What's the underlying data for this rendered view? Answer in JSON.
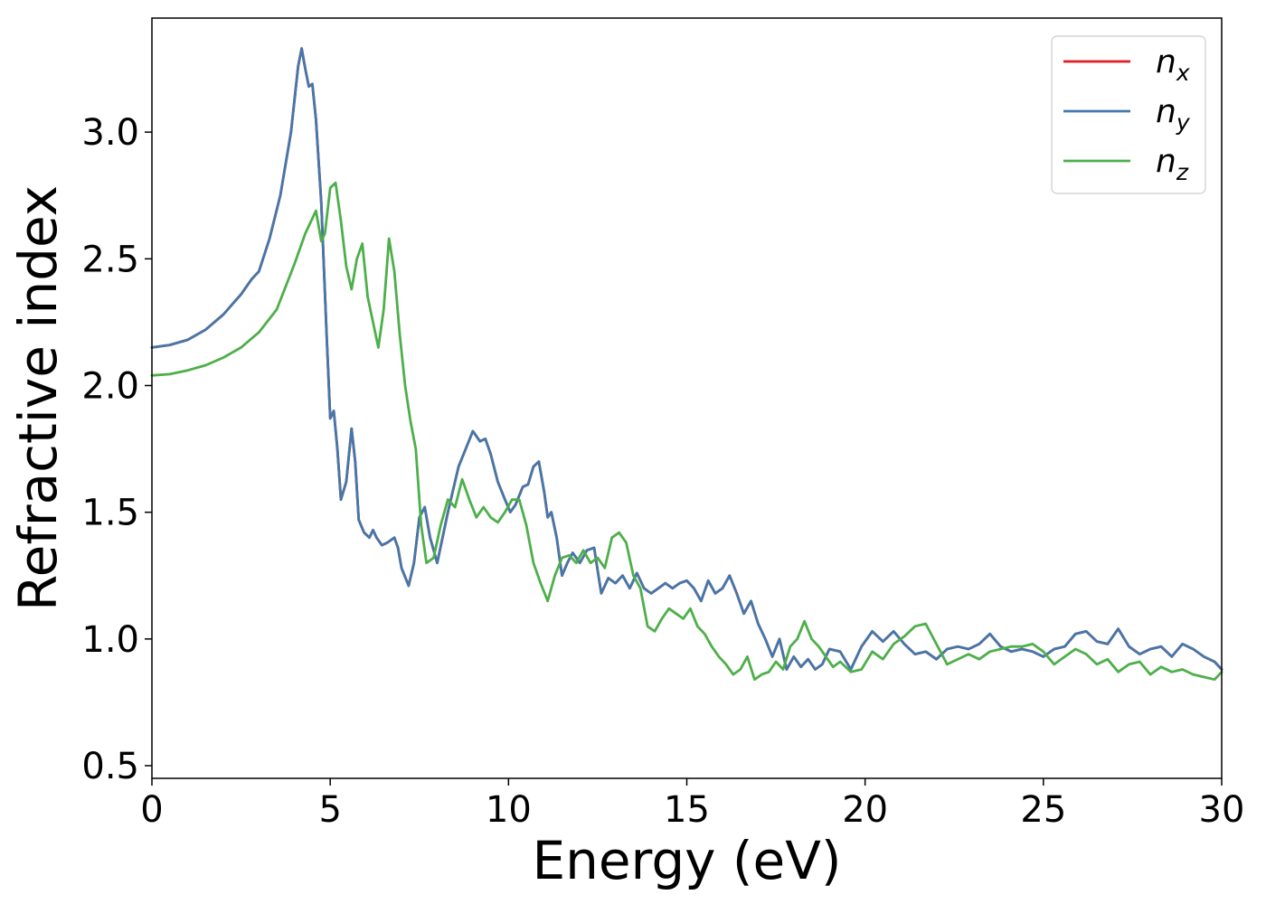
{
  "chart_data": {
    "type": "line",
    "xlabel": "Energy (eV)",
    "ylabel": "Refractive index",
    "xlim": [
      0,
      30
    ],
    "ylim": [
      0.45,
      3.45
    ],
    "xticks": [
      0,
      5,
      10,
      15,
      20,
      25,
      30
    ],
    "xtick_labels": [
      "0",
      "5",
      "10",
      "15",
      "20",
      "25",
      "30"
    ],
    "yticks": [
      0.5,
      1.0,
      1.5,
      2.0,
      2.5,
      3.0
    ],
    "ytick_labels": [
      "0.5",
      "1.0",
      "1.5",
      "2.0",
      "2.5",
      "3.0"
    ],
    "grid": false,
    "legend_position": "top-right",
    "series": [
      {
        "name": "n_x",
        "legend_base": "n",
        "legend_sub": "x",
        "color": "#e41a1c",
        "x": [
          0,
          0.5,
          1,
          1.5,
          2,
          2.5,
          2.8,
          3.0,
          3.3,
          3.6,
          3.9,
          4.1,
          4.2,
          4.3,
          4.4,
          4.5,
          4.6,
          4.75,
          4.9,
          5.0,
          5.1,
          5.2,
          5.3,
          5.45,
          5.6,
          5.7,
          5.8,
          5.95,
          6.1,
          6.2,
          6.3,
          6.45,
          6.6,
          6.8,
          6.9,
          7.0,
          7.2,
          7.35,
          7.5,
          7.65,
          7.8,
          8.0,
          8.3,
          8.6,
          8.8,
          9.0,
          9.2,
          9.35,
          9.5,
          9.7,
          9.9,
          10.05,
          10.2,
          10.4,
          10.55,
          10.7,
          10.85,
          11.0,
          11.1,
          11.2,
          11.35,
          11.5,
          11.65,
          11.8,
          12.0,
          12.2,
          12.4,
          12.6,
          12.8,
          13.0,
          13.2,
          13.4,
          13.6,
          13.8,
          14.0,
          14.2,
          14.4,
          14.6,
          14.8,
          15.0,
          15.2,
          15.4,
          15.6,
          15.8,
          16.0,
          16.2,
          16.4,
          16.6,
          16.8,
          17.0,
          17.2,
          17.4,
          17.6,
          17.8,
          18.0,
          18.2,
          18.4,
          18.6,
          18.8,
          19.0,
          19.3,
          19.6,
          19.9,
          20.2,
          20.5,
          20.8,
          21.1,
          21.4,
          21.7,
          22.0,
          22.3,
          22.6,
          22.9,
          23.2,
          23.5,
          23.8,
          24.1,
          24.4,
          24.7,
          25.0,
          25.3,
          25.6,
          25.9,
          26.2,
          26.5,
          26.8,
          27.1,
          27.4,
          27.7,
          28.0,
          28.3,
          28.6,
          28.9,
          29.2,
          29.5,
          29.8,
          30.0
        ],
        "y": [
          2.15,
          2.16,
          2.18,
          2.22,
          2.28,
          2.36,
          2.42,
          2.45,
          2.58,
          2.75,
          3.0,
          3.26,
          3.33,
          3.25,
          3.18,
          3.19,
          3.05,
          2.72,
          2.2,
          1.87,
          1.9,
          1.75,
          1.55,
          1.62,
          1.83,
          1.7,
          1.47,
          1.42,
          1.4,
          1.43,
          1.4,
          1.37,
          1.38,
          1.4,
          1.36,
          1.28,
          1.21,
          1.3,
          1.48,
          1.52,
          1.4,
          1.3,
          1.5,
          1.68,
          1.75,
          1.82,
          1.78,
          1.79,
          1.73,
          1.62,
          1.55,
          1.5,
          1.53,
          1.6,
          1.61,
          1.68,
          1.7,
          1.58,
          1.48,
          1.5,
          1.4,
          1.25,
          1.3,
          1.34,
          1.3,
          1.35,
          1.36,
          1.18,
          1.24,
          1.22,
          1.25,
          1.2,
          1.26,
          1.2,
          1.18,
          1.2,
          1.22,
          1.2,
          1.22,
          1.23,
          1.2,
          1.15,
          1.23,
          1.18,
          1.2,
          1.25,
          1.18,
          1.1,
          1.15,
          1.06,
          1.0,
          0.93,
          1.0,
          0.88,
          0.93,
          0.89,
          0.92,
          0.88,
          0.9,
          0.96,
          0.95,
          0.88,
          0.97,
          1.03,
          0.99,
          1.03,
          0.98,
          0.94,
          0.95,
          0.92,
          0.96,
          0.97,
          0.96,
          0.98,
          1.02,
          0.97,
          0.95,
          0.96,
          0.95,
          0.93,
          0.96,
          0.97,
          1.02,
          1.03,
          0.99,
          0.98,
          1.04,
          0.97,
          0.94,
          0.96,
          0.97,
          0.93,
          0.98,
          0.96,
          0.93,
          0.91,
          0.88
        ]
      },
      {
        "name": "n_y",
        "legend_base": "n",
        "legend_sub": "y",
        "color": "#4477aa",
        "x": [
          0,
          0.5,
          1,
          1.5,
          2,
          2.5,
          2.8,
          3.0,
          3.3,
          3.6,
          3.9,
          4.1,
          4.2,
          4.3,
          4.4,
          4.5,
          4.6,
          4.75,
          4.9,
          5.0,
          5.1,
          5.2,
          5.3,
          5.45,
          5.6,
          5.7,
          5.8,
          5.95,
          6.1,
          6.2,
          6.3,
          6.45,
          6.6,
          6.8,
          6.9,
          7.0,
          7.2,
          7.35,
          7.5,
          7.65,
          7.8,
          8.0,
          8.3,
          8.6,
          8.8,
          9.0,
          9.2,
          9.35,
          9.5,
          9.7,
          9.9,
          10.05,
          10.2,
          10.4,
          10.55,
          10.7,
          10.85,
          11.0,
          11.1,
          11.2,
          11.35,
          11.5,
          11.65,
          11.8,
          12.0,
          12.2,
          12.4,
          12.6,
          12.8,
          13.0,
          13.2,
          13.4,
          13.6,
          13.8,
          14.0,
          14.2,
          14.4,
          14.6,
          14.8,
          15.0,
          15.2,
          15.4,
          15.6,
          15.8,
          16.0,
          16.2,
          16.4,
          16.6,
          16.8,
          17.0,
          17.2,
          17.4,
          17.6,
          17.8,
          18.0,
          18.2,
          18.4,
          18.6,
          18.8,
          19.0,
          19.3,
          19.6,
          19.9,
          20.2,
          20.5,
          20.8,
          21.1,
          21.4,
          21.7,
          22.0,
          22.3,
          22.6,
          22.9,
          23.2,
          23.5,
          23.8,
          24.1,
          24.4,
          24.7,
          25.0,
          25.3,
          25.6,
          25.9,
          26.2,
          26.5,
          26.8,
          27.1,
          27.4,
          27.7,
          28.0,
          28.3,
          28.6,
          28.9,
          29.2,
          29.5,
          29.8,
          30.0
        ],
        "y": [
          2.15,
          2.16,
          2.18,
          2.22,
          2.28,
          2.36,
          2.42,
          2.45,
          2.58,
          2.75,
          3.0,
          3.26,
          3.33,
          3.25,
          3.18,
          3.19,
          3.05,
          2.72,
          2.2,
          1.87,
          1.9,
          1.75,
          1.55,
          1.62,
          1.83,
          1.7,
          1.47,
          1.42,
          1.4,
          1.43,
          1.4,
          1.37,
          1.38,
          1.4,
          1.36,
          1.28,
          1.21,
          1.3,
          1.48,
          1.52,
          1.4,
          1.3,
          1.5,
          1.68,
          1.75,
          1.82,
          1.78,
          1.79,
          1.73,
          1.62,
          1.55,
          1.5,
          1.53,
          1.6,
          1.61,
          1.68,
          1.7,
          1.58,
          1.48,
          1.5,
          1.4,
          1.25,
          1.3,
          1.34,
          1.3,
          1.35,
          1.36,
          1.18,
          1.24,
          1.22,
          1.25,
          1.2,
          1.26,
          1.2,
          1.18,
          1.2,
          1.22,
          1.2,
          1.22,
          1.23,
          1.2,
          1.15,
          1.23,
          1.18,
          1.2,
          1.25,
          1.18,
          1.1,
          1.15,
          1.06,
          1.0,
          0.93,
          1.0,
          0.88,
          0.93,
          0.89,
          0.92,
          0.88,
          0.9,
          0.96,
          0.95,
          0.88,
          0.97,
          1.03,
          0.99,
          1.03,
          0.98,
          0.94,
          0.95,
          0.92,
          0.96,
          0.97,
          0.96,
          0.98,
          1.02,
          0.97,
          0.95,
          0.96,
          0.95,
          0.93,
          0.96,
          0.97,
          1.02,
          1.03,
          0.99,
          0.98,
          1.04,
          0.97,
          0.94,
          0.96,
          0.97,
          0.93,
          0.98,
          0.96,
          0.93,
          0.91,
          0.88
        ]
      },
      {
        "name": "n_z",
        "legend_base": "n",
        "legend_sub": "z",
        "color": "#4daf4a",
        "x": [
          0,
          0.5,
          1,
          1.5,
          2,
          2.5,
          3.0,
          3.5,
          4.0,
          4.3,
          4.6,
          4.75,
          4.85,
          5.0,
          5.15,
          5.3,
          5.45,
          5.6,
          5.75,
          5.9,
          6.05,
          6.2,
          6.35,
          6.5,
          6.65,
          6.8,
          6.95,
          7.1,
          7.25,
          7.4,
          7.55,
          7.7,
          7.9,
          8.1,
          8.3,
          8.5,
          8.7,
          8.9,
          9.1,
          9.3,
          9.5,
          9.7,
          9.9,
          10.1,
          10.3,
          10.5,
          10.7,
          10.9,
          11.1,
          11.3,
          11.5,
          11.7,
          11.9,
          12.1,
          12.3,
          12.5,
          12.7,
          12.9,
          13.1,
          13.3,
          13.5,
          13.7,
          13.9,
          14.1,
          14.3,
          14.5,
          14.7,
          14.9,
          15.1,
          15.3,
          15.5,
          15.7,
          15.9,
          16.1,
          16.3,
          16.5,
          16.7,
          16.9,
          17.1,
          17.3,
          17.5,
          17.7,
          17.9,
          18.1,
          18.3,
          18.5,
          18.7,
          18.9,
          19.1,
          19.3,
          19.6,
          19.9,
          20.2,
          20.5,
          20.8,
          21.1,
          21.4,
          21.7,
          22.0,
          22.3,
          22.6,
          22.9,
          23.2,
          23.5,
          23.8,
          24.1,
          24.4,
          24.7,
          25.0,
          25.3,
          25.6,
          25.9,
          26.2,
          26.5,
          26.8,
          27.1,
          27.4,
          27.7,
          28.0,
          28.3,
          28.6,
          28.9,
          29.2,
          29.5,
          29.8,
          30.0
        ],
        "y": [
          2.04,
          2.045,
          2.06,
          2.08,
          2.11,
          2.15,
          2.21,
          2.3,
          2.48,
          2.6,
          2.69,
          2.57,
          2.6,
          2.78,
          2.8,
          2.65,
          2.47,
          2.38,
          2.5,
          2.56,
          2.35,
          2.25,
          2.15,
          2.3,
          2.58,
          2.45,
          2.2,
          2.0,
          1.86,
          1.75,
          1.45,
          1.3,
          1.32,
          1.45,
          1.55,
          1.52,
          1.63,
          1.55,
          1.48,
          1.52,
          1.48,
          1.46,
          1.5,
          1.55,
          1.55,
          1.45,
          1.3,
          1.22,
          1.15,
          1.25,
          1.32,
          1.33,
          1.3,
          1.35,
          1.3,
          1.32,
          1.28,
          1.4,
          1.42,
          1.38,
          1.25,
          1.2,
          1.05,
          1.03,
          1.08,
          1.12,
          1.1,
          1.08,
          1.12,
          1.05,
          1.02,
          0.97,
          0.93,
          0.9,
          0.86,
          0.88,
          0.93,
          0.84,
          0.86,
          0.87,
          0.91,
          0.88,
          0.97,
          1.0,
          1.07,
          1.0,
          0.97,
          0.93,
          0.89,
          0.91,
          0.87,
          0.88,
          0.95,
          0.92,
          0.98,
          1.01,
          1.05,
          1.06,
          0.98,
          0.9,
          0.92,
          0.94,
          0.92,
          0.95,
          0.96,
          0.97,
          0.97,
          0.98,
          0.95,
          0.9,
          0.93,
          0.96,
          0.94,
          0.9,
          0.92,
          0.87,
          0.9,
          0.91,
          0.86,
          0.89,
          0.87,
          0.88,
          0.86,
          0.85,
          0.84,
          0.87
        ]
      }
    ]
  }
}
